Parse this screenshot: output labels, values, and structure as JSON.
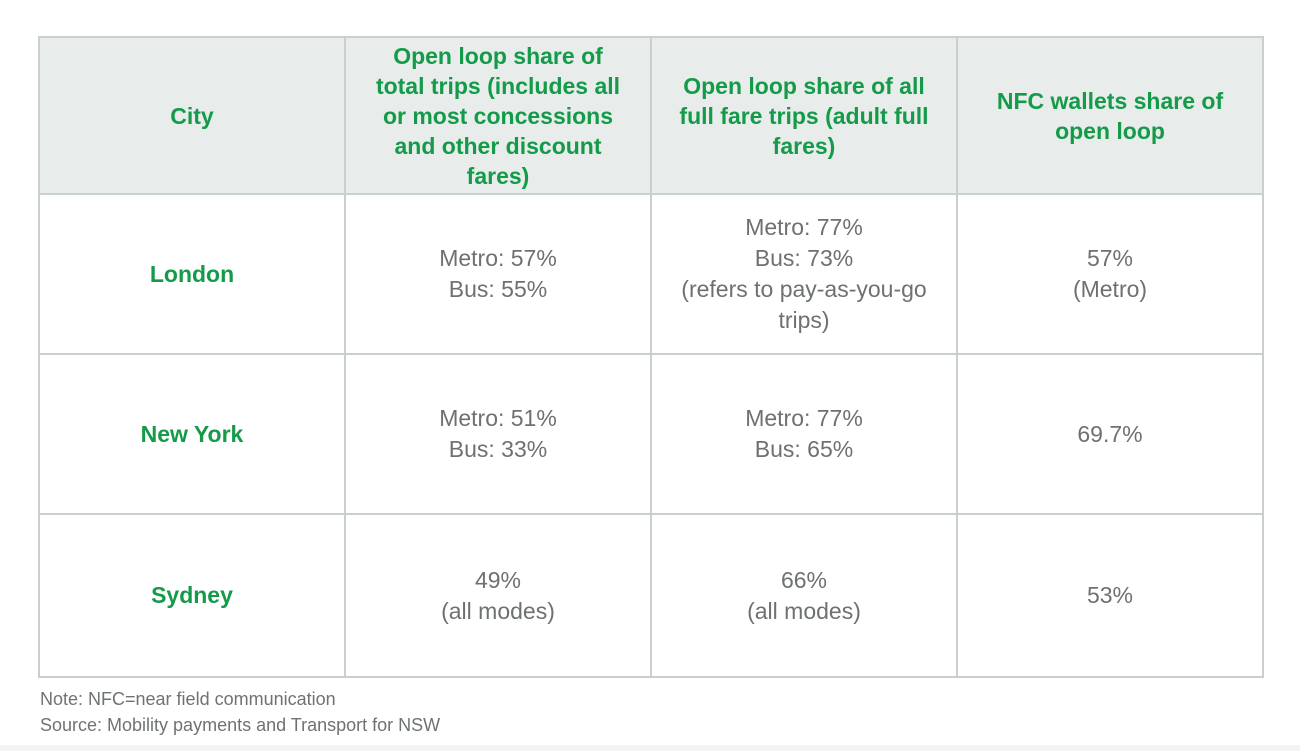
{
  "colors": {
    "accent_green": "#149b4a",
    "header_background": "#e8ecea",
    "table_border": "#c9cfcc",
    "body_text": "#6d7170",
    "note_text": "#6e7371"
  },
  "table": {
    "header": [
      "City",
      "Open loop share of total trips (includes all or most concessions and other discount fares)",
      "Open loop share of all full fare trips (adult full fares)",
      "NFC wallets share of open loop"
    ],
    "rows": [
      {
        "cells": [
          "London",
          "Metro: 57%\nBus: 55%",
          "Metro: 77%\nBus: 73%\n(refers to pay-as-you-go trips)",
          "57%\n(Metro)"
        ]
      },
      {
        "cells": [
          "New York",
          "Metro: 51%\nBus: 33%",
          "Metro: 77%\nBus: 65%",
          "69.7%"
        ]
      },
      {
        "cells": [
          "Sydney",
          "49%\n(all modes)",
          "66%\n(all modes)",
          "53%"
        ]
      }
    ]
  },
  "footnotes": {
    "note": "Note: NFC=near field communication",
    "source": "Source: Mobility payments and Transport for NSW"
  },
  "chart_data": {
    "type": "table",
    "columns": [
      "City",
      "Open loop share of total trips (includes all or most concessions and other discount fares)",
      "Open loop share of all full fare trips (adult full fares)",
      "NFC wallets share of open loop"
    ],
    "rows": [
      [
        "London",
        "Metro: 57%; Bus: 55%",
        "Metro: 77%; Bus: 73% (refers to pay-as-you-go trips)",
        "57% (Metro)"
      ],
      [
        "New York",
        "Metro: 51%; Bus: 33%",
        "Metro: 77%; Bus: 65%",
        "69.7%"
      ],
      [
        "Sydney",
        "49% (all modes)",
        "66% (all modes)",
        "53%"
      ]
    ],
    "note": "Note: NFC=near field communication",
    "source": "Source: Mobility payments and Transport for NSW"
  }
}
